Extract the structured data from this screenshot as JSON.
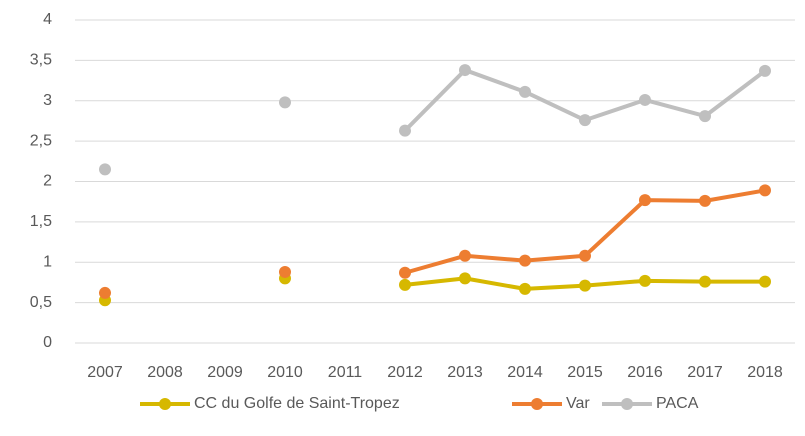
{
  "chart_data": {
    "type": "line",
    "categories": [
      "2007",
      "2008",
      "2009",
      "2010",
      "2011",
      "2012",
      "2013",
      "2014",
      "2015",
      "2016",
      "2017",
      "2018"
    ],
    "series": [
      {
        "name": "CC du Golfe de Saint-Tropez",
        "color": "#d6b800",
        "values": [
          0.53,
          null,
          null,
          0.8,
          null,
          0.72,
          0.8,
          0.67,
          0.71,
          0.77,
          0.76,
          0.76
        ]
      },
      {
        "name": "Var",
        "color": "#ed7d31",
        "values": [
          0.62,
          null,
          null,
          0.88,
          null,
          0.87,
          1.08,
          1.02,
          1.08,
          1.77,
          1.76,
          1.89
        ]
      },
      {
        "name": "PACA",
        "color": "#bfbfbf",
        "values": [
          2.15,
          null,
          null,
          2.98,
          null,
          2.63,
          3.38,
          3.11,
          2.76,
          3.01,
          2.81,
          3.37
        ]
      }
    ],
    "ylim": [
      0,
      4
    ],
    "yticks": [
      0,
      {
        "value": 0.5,
        "label": "0,5"
      },
      1,
      {
        "value": 1.5,
        "label": "1,5"
      },
      2,
      {
        "value": 2.5,
        "label": "2,5"
      },
      3,
      {
        "value": 3.5,
        "label": "3,5"
      },
      4
    ],
    "grid": true,
    "legend": "bottom"
  }
}
